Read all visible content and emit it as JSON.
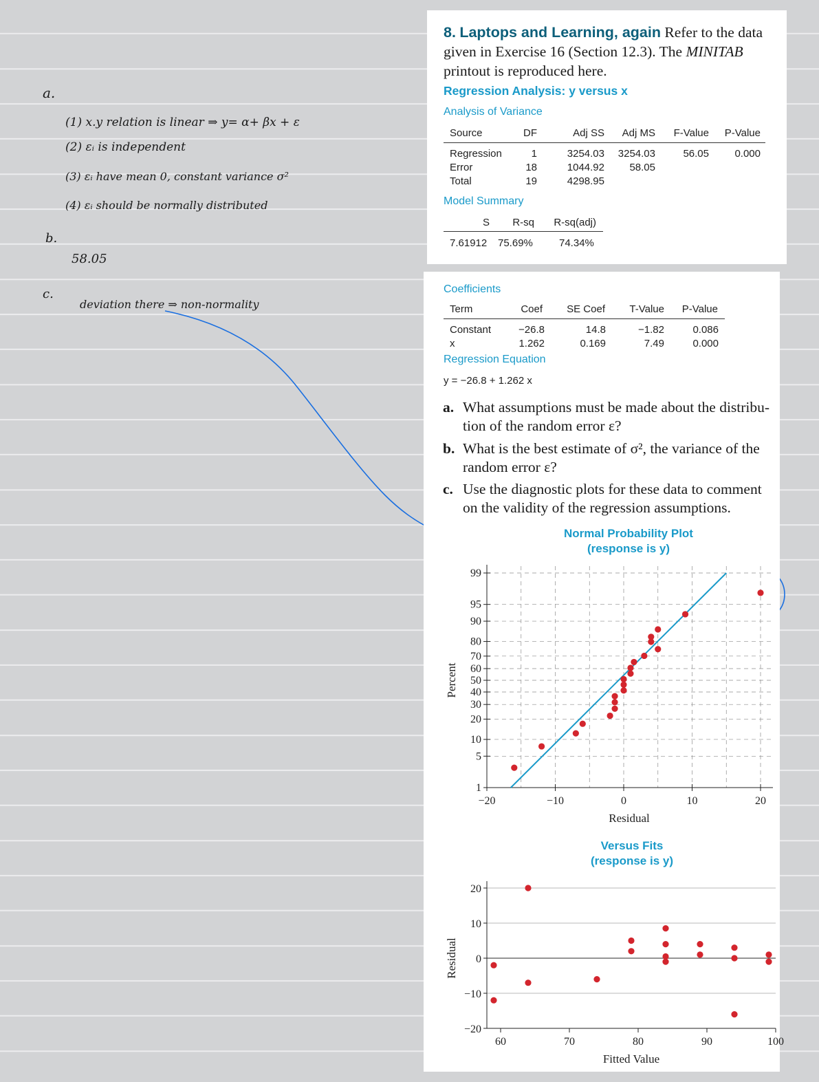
{
  "notes": {
    "a_label": "a.",
    "a_lines": [
      "(1)  x.y relation is linear ⇒ y= α+ βx + ε",
      "(2)  εᵢ is independent",
      "(3)  εᵢ have mean 0, constant variance σ²",
      "(4)  εᵢ should be normally distributed"
    ],
    "b_label": "b.",
    "b_answer": "58.05",
    "c_label": "c.",
    "c_answer": "deviation there ⇒ non-normality"
  },
  "exercise": {
    "number": "8.",
    "name": "Laptops and Learning, again",
    "text_1": "Refer to the data given in Exercise 16 (Section 12.3). The ",
    "software": "MINITAB",
    "text_2": " printout is reproduced here."
  },
  "regression_title": "Regression Analysis: y versus x",
  "anova": {
    "heading": "Analysis of Variance",
    "columns": [
      "Source",
      "DF",
      "Adj SS",
      "Adj MS",
      "F-Value",
      "P-Value"
    ],
    "rows": [
      [
        "Regression",
        "1",
        "3254.03",
        "3254.03",
        "56.05",
        "0.000"
      ],
      [
        "Error",
        "18",
        "1044.92",
        "58.05",
        "",
        ""
      ],
      [
        "Total",
        "19",
        "4298.95",
        "",
        "",
        ""
      ]
    ]
  },
  "model_summary": {
    "heading": "Model Summary",
    "columns": [
      "S",
      "R-sq",
      "R-sq(adj)"
    ],
    "values": [
      "7.61912",
      "75.69%",
      "74.34%"
    ]
  },
  "coefficients": {
    "heading": "Coefficients",
    "columns": [
      "Term",
      "Coef",
      "SE Coef",
      "T-Value",
      "P-Value"
    ],
    "rows": [
      [
        "Constant",
        "−26.8",
        "14.8",
        "−1.82",
        "0.086"
      ],
      [
        "x",
        "1.262",
        "0.169",
        "7.49",
        "0.000"
      ]
    ]
  },
  "equation": {
    "heading": "Regression Equation",
    "text": "y = −26.8 + 1.262 x"
  },
  "questions": [
    {
      "label": "a.",
      "text": "What assumptions must be made about the distribu­tion of the random error ε?"
    },
    {
      "label": "b.",
      "text": "What is the best estimate of σ², the variance of the random error ε?"
    },
    {
      "label": "c.",
      "text": "Use the diagnostic plots for these data to comment on the validity of the regression assumptions."
    }
  ],
  "colors": {
    "accent": "#1a9ac9",
    "point": "#d3252d",
    "ink": "#1a6fe0"
  },
  "chart_data": [
    {
      "type": "scatter",
      "title": "Normal Probability Plot",
      "subtitle": "(response is y)",
      "xlabel": "Residual",
      "ylabel": "Percent",
      "y_scale": "normal-probability",
      "xlim": [
        -20,
        20
      ],
      "xticks": [
        "−20",
        "−10",
        "0",
        "10",
        "20"
      ],
      "yticks": [
        1,
        5,
        10,
        20,
        30,
        40,
        50,
        60,
        70,
        80,
        90,
        95,
        99
      ],
      "fit_line": {
        "x": [
          -16.5,
          15
        ],
        "percent": [
          1,
          99
        ]
      },
      "points": [
        {
          "x": -16,
          "y": 2.9
        },
        {
          "x": -12,
          "y": 7.6
        },
        {
          "x": -7,
          "y": 12.5
        },
        {
          "x": -6,
          "y": 17.3
        },
        {
          "x": -2,
          "y": 22.1
        },
        {
          "x": -1.3,
          "y": 26.9
        },
        {
          "x": -1.3,
          "y": 31.7
        },
        {
          "x": -1.3,
          "y": 36.5
        },
        {
          "x": 0,
          "y": 41.3
        },
        {
          "x": 0,
          "y": 46.2
        },
        {
          "x": 0,
          "y": 51.0
        },
        {
          "x": 1,
          "y": 55.8
        },
        {
          "x": 1,
          "y": 60.6
        },
        {
          "x": 1.5,
          "y": 65.4
        },
        {
          "x": 3,
          "y": 70.2
        },
        {
          "x": 5,
          "y": 75.0
        },
        {
          "x": 4,
          "y": 79.8
        },
        {
          "x": 4,
          "y": 82.7
        },
        {
          "x": 5,
          "y": 86.5
        },
        {
          "x": 9,
          "y": 92.4
        },
        {
          "x": 20,
          "y": 97.1
        }
      ]
    },
    {
      "type": "scatter",
      "title": "Versus Fits",
      "subtitle": "(response is y)",
      "xlabel": "Fitted Value",
      "ylabel": "Residual",
      "xlim": [
        58,
        100
      ],
      "ylim": [
        -20,
        20
      ],
      "xticks": [
        "60",
        "70",
        "80",
        "90",
        "100"
      ],
      "yticks": [
        "−20",
        "−10",
        "0",
        "10",
        "20"
      ],
      "points": [
        {
          "x": 59,
          "y": -2
        },
        {
          "x": 59,
          "y": -12
        },
        {
          "x": 64,
          "y": 20
        },
        {
          "x": 64,
          "y": -7
        },
        {
          "x": 74,
          "y": -6
        },
        {
          "x": 79,
          "y": 5
        },
        {
          "x": 79,
          "y": 2
        },
        {
          "x": 84,
          "y": 8.5
        },
        {
          "x": 84,
          "y": 4
        },
        {
          "x": 84,
          "y": 0.5
        },
        {
          "x": 84,
          "y": -1
        },
        {
          "x": 89,
          "y": 4
        },
        {
          "x": 89,
          "y": 1
        },
        {
          "x": 94,
          "y": 3
        },
        {
          "x": 94,
          "y": 0
        },
        {
          "x": 94,
          "y": -16
        },
        {
          "x": 99,
          "y": 1
        },
        {
          "x": 99,
          "y": -1
        }
      ]
    }
  ]
}
